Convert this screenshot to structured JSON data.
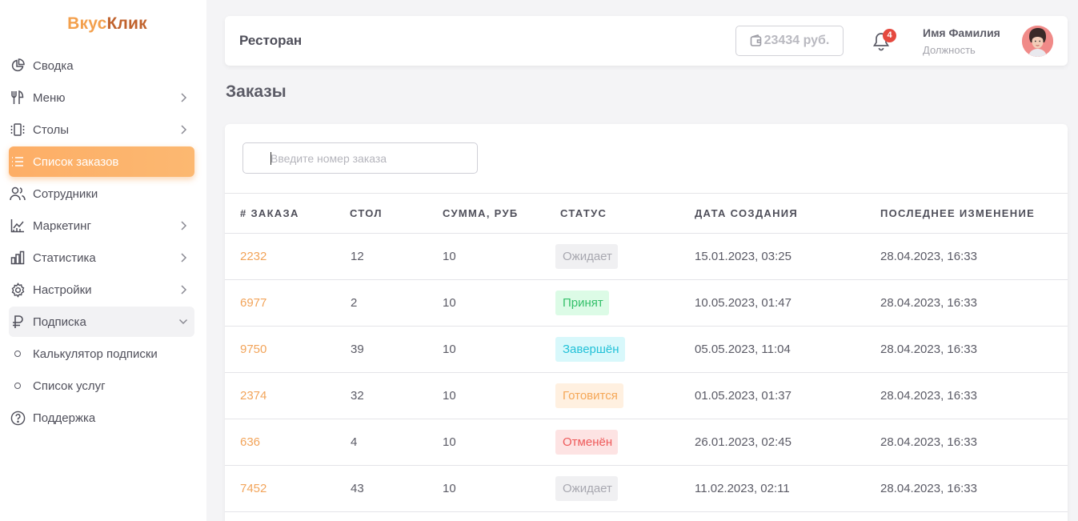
{
  "app": {
    "logo_part1": "Вкус",
    "logo_part2": "Клик"
  },
  "sidebar": {
    "items": [
      {
        "label": "Сводка"
      },
      {
        "label": "Меню"
      },
      {
        "label": "Столы"
      },
      {
        "label": "Список заказов"
      },
      {
        "label": "Сотрудники"
      },
      {
        "label": "Маркетинг"
      },
      {
        "label": "Статистика"
      },
      {
        "label": "Настройки"
      },
      {
        "label": "Подписка"
      },
      {
        "label": "Калькулятор подписки"
      },
      {
        "label": "Список услуг"
      },
      {
        "label": "Поддержка"
      }
    ]
  },
  "header": {
    "title": "Ресторан",
    "balance": "23434 руб.",
    "notification_count": "4",
    "user_name": "Имя Фамилия",
    "user_role": "Должность"
  },
  "page": {
    "title": "Заказы"
  },
  "search": {
    "placeholder": "Введите номер заказа"
  },
  "table": {
    "headers": [
      "# Заказа",
      "Стол",
      "Сумма, руб",
      "Статус",
      "Дата создания",
      "Последнее изменение"
    ],
    "rows": [
      {
        "id": "2232",
        "table": "12",
        "sum": "10",
        "status": "Ожидает",
        "created": "15.01.2023, 03:25",
        "modified": "28.04.2023, 16:33"
      },
      {
        "id": "6977",
        "table": "2",
        "sum": "10",
        "status": "Принят",
        "created": "10.05.2023, 01:47",
        "modified": "28.04.2023, 16:33"
      },
      {
        "id": "9750",
        "table": "39",
        "sum": "10",
        "status": "Завершён",
        "created": "05.05.2023, 11:04",
        "modified": "28.04.2023, 16:33"
      },
      {
        "id": "2374",
        "table": "32",
        "sum": "10",
        "status": "Готовится",
        "created": "01.05.2023, 01:37",
        "modified": "28.04.2023, 16:33"
      },
      {
        "id": "636",
        "table": "4",
        "sum": "10",
        "status": "Отменён",
        "created": "26.01.2023, 02:45",
        "modified": "28.04.2023, 16:33"
      },
      {
        "id": "7452",
        "table": "43",
        "sum": "10",
        "status": "Ожидает",
        "created": "11.02.2023, 02:11",
        "modified": "28.04.2023, 16:33"
      }
    ]
  },
  "colors": {
    "accent": "#fdae66",
    "logo_light": "#f3a04d",
    "logo_dark": "#c0622c",
    "status_waiting": "#a8a8b0",
    "status_accepted": "#34c06a",
    "status_done": "#22c1d8",
    "status_cooking": "#f5a757",
    "status_cancelled": "#ee5a5a"
  }
}
